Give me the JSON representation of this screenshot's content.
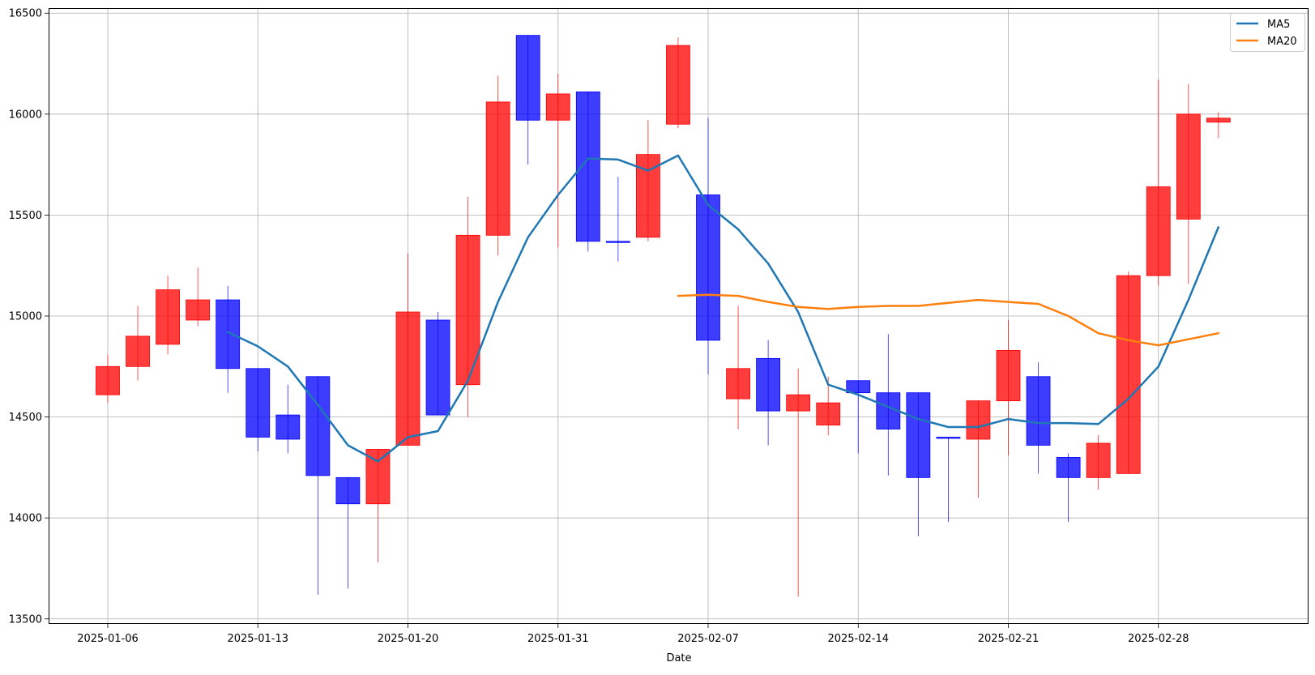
{
  "chart_data": {
    "type": "candlestick",
    "xlabel": "Date",
    "ylabel": "",
    "ylim": [
      13475,
      16525
    ],
    "y_ticks": [
      13500,
      14000,
      14500,
      15000,
      15500,
      16000,
      16500
    ],
    "grid": true,
    "legend": {
      "placement": "top-right",
      "entries": [
        "MA5",
        "MA20"
      ]
    },
    "colors": {
      "up": "#ff0000",
      "down": "#0000ff",
      "ma5": "#1f77b4",
      "ma20": "#ff7f0e"
    },
    "x_tick_labels": [
      {
        "index": 0,
        "label": "2025-01-06"
      },
      {
        "index": 5,
        "label": "2025-01-13"
      },
      {
        "index": 10,
        "label": "2025-01-20"
      },
      {
        "index": 15,
        "label": "2025-01-31"
      },
      {
        "index": 20,
        "label": "2025-02-07"
      },
      {
        "index": 25,
        "label": "2025-02-14"
      },
      {
        "index": 30,
        "label": "2025-02-21"
      },
      {
        "index": 35,
        "label": "2025-02-28"
      }
    ],
    "candles": [
      {
        "o": 14610,
        "c": 14750,
        "h": 14810,
        "l": 14570
      },
      {
        "o": 14750,
        "c": 14900,
        "h": 15050,
        "l": 14680
      },
      {
        "o": 14860,
        "c": 15130,
        "h": 15200,
        "l": 14810
      },
      {
        "o": 14980,
        "c": 15080,
        "h": 15240,
        "l": 14950
      },
      {
        "o": 15080,
        "c": 14740,
        "h": 15150,
        "l": 14620
      },
      {
        "o": 14740,
        "c": 14400,
        "h": 14740,
        "l": 14330
      },
      {
        "o": 14510,
        "c": 14390,
        "h": 14660,
        "l": 14320
      },
      {
        "o": 14700,
        "c": 14210,
        "h": 14700,
        "l": 13620
      },
      {
        "o": 14200,
        "c": 14070,
        "h": 14200,
        "l": 13650
      },
      {
        "o": 14070,
        "c": 14340,
        "h": 14340,
        "l": 13780
      },
      {
        "o": 14360,
        "c": 15020,
        "h": 15310,
        "l": 14360
      },
      {
        "o": 14980,
        "c": 14510,
        "h": 15020,
        "l": 14510
      },
      {
        "o": 14660,
        "c": 15400,
        "h": 15590,
        "l": 14500
      },
      {
        "o": 15400,
        "c": 16060,
        "h": 16190,
        "l": 15300
      },
      {
        "o": 16390,
        "c": 15970,
        "h": 16390,
        "l": 15750
      },
      {
        "o": 15970,
        "c": 16100,
        "h": 16200,
        "l": 15340
      },
      {
        "o": 16110,
        "c": 15370,
        "h": 16110,
        "l": 15320
      },
      {
        "o": 15370,
        "c": 15365,
        "h": 15690,
        "l": 15270
      },
      {
        "o": 15390,
        "c": 15800,
        "h": 15970,
        "l": 15370
      },
      {
        "o": 15950,
        "c": 16340,
        "h": 16380,
        "l": 15930
      },
      {
        "o": 15600,
        "c": 14880,
        "h": 15980,
        "l": 14710
      },
      {
        "o": 14590,
        "c": 14740,
        "h": 15050,
        "l": 14440
      },
      {
        "o": 14790,
        "c": 14530,
        "h": 14880,
        "l": 14360
      },
      {
        "o": 14530,
        "c": 14610,
        "h": 14740,
        "l": 13610
      },
      {
        "o": 14460,
        "c": 14570,
        "h": 14700,
        "l": 14410
      },
      {
        "o": 14680,
        "c": 14620,
        "h": 14680,
        "l": 14320
      },
      {
        "o": 14620,
        "c": 14440,
        "h": 14910,
        "l": 14210
      },
      {
        "o": 14620,
        "c": 14200,
        "h": 14620,
        "l": 13910
      },
      {
        "o": 14400,
        "c": 14395,
        "h": 14400,
        "l": 13980
      },
      {
        "o": 14390,
        "c": 14580,
        "h": 14580,
        "l": 14100
      },
      {
        "o": 14580,
        "c": 14830,
        "h": 14980,
        "l": 14310
      },
      {
        "o": 14700,
        "c": 14360,
        "h": 14770,
        "l": 14220
      },
      {
        "o": 14300,
        "c": 14200,
        "h": 14320,
        "l": 13980
      },
      {
        "o": 14200,
        "c": 14370,
        "h": 14410,
        "l": 14140
      },
      {
        "o": 14220,
        "c": 15200,
        "h": 15220,
        "l": 14220
      },
      {
        "o": 15200,
        "c": 15640,
        "h": 16170,
        "l": 15150
      },
      {
        "o": 15480,
        "c": 16000,
        "h": 16150,
        "l": 15160
      },
      {
        "o": 15960,
        "c": 15980,
        "h": 16010,
        "l": 15880
      }
    ],
    "series": [
      {
        "name": "MA5",
        "start_index": 4,
        "values": [
          14920,
          14850,
          14750,
          14560,
          14360,
          14280,
          14400,
          14430,
          14680,
          15070,
          15390,
          15600,
          15780,
          15775,
          15720,
          15795,
          15550,
          15430,
          15260,
          15020,
          14660,
          14610,
          14550,
          14490,
          14450,
          14450,
          14490,
          14470,
          14470,
          14465,
          14590,
          14750,
          15080,
          15440
        ]
      },
      {
        "name": "MA20",
        "start_index": 19,
        "values": [
          15100,
          15105,
          15100,
          15070,
          15045,
          15035,
          15045,
          15050,
          15050,
          15065,
          15080,
          15070,
          15060,
          15000,
          14915,
          14880,
          14855,
          14885,
          14915
        ]
      }
    ]
  }
}
